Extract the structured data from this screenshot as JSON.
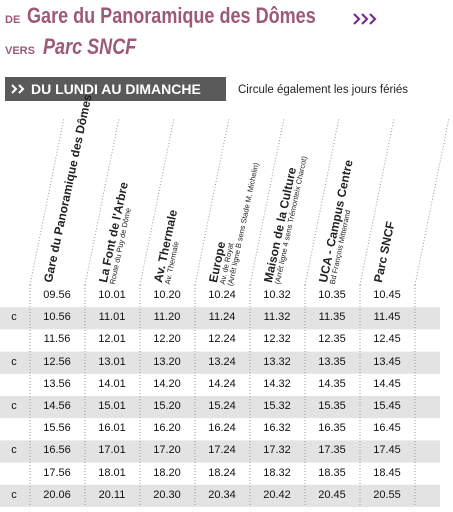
{
  "header": {
    "from_prefix": "DE",
    "from": "Gare du Panoramique des Dômes",
    "to_prefix": "VERS",
    "to": "Parc SNCF"
  },
  "banner": {
    "days": "DU LUNDI AU DIMANCHE",
    "note": "Circule également les jours fériés"
  },
  "table": {
    "columns": [
      {
        "name": "Gare du Panoramique des Dômes",
        "sub": null
      },
      {
        "name": "La Font de l'Arbre",
        "sub": "Route du Puy de Dôme"
      },
      {
        "name": "Av. Thermale",
        "sub": "Av. Thermale"
      },
      {
        "name": "Europe",
        "sub": "Av. de Royat",
        "sub2": "(Arrêt ligne B sens Stade M. Michelin)"
      },
      {
        "name": "Maison de la Culture",
        "sub": "(Arrêt ligne 4 sens Trémonteix Charcot)"
      },
      {
        "name": "UCA - Campus Centre",
        "sub": "Bd François Mitterrand"
      },
      {
        "name": "Parc SNCF",
        "sub": null
      }
    ],
    "rows": [
      {
        "note": null,
        "times": [
          "09.56",
          "10.01",
          "10.20",
          "10.24",
          "10.32",
          "10.35",
          "10.45"
        ]
      },
      {
        "note": "c",
        "times": [
          "10.56",
          "11.01",
          "11.20",
          "11.24",
          "11.32",
          "11.35",
          "11.45"
        ]
      },
      {
        "note": null,
        "times": [
          "11.56",
          "12.01",
          "12.20",
          "12.24",
          "12.32",
          "12.35",
          "12.45"
        ]
      },
      {
        "note": "c",
        "times": [
          "12.56",
          "13.01",
          "13.20",
          "13.24",
          "13.32",
          "13.35",
          "13.45"
        ]
      },
      {
        "note": null,
        "times": [
          "13.56",
          "14.01",
          "14.20",
          "14.24",
          "14.32",
          "14.35",
          "14.45"
        ]
      },
      {
        "note": "c",
        "times": [
          "14.56",
          "15.01",
          "15.20",
          "15.24",
          "15.32",
          "15.35",
          "15.45"
        ]
      },
      {
        "note": null,
        "times": [
          "15.56",
          "16.01",
          "16.20",
          "16.24",
          "16.32",
          "16.35",
          "16.45"
        ]
      },
      {
        "note": "c",
        "times": [
          "16.56",
          "17.01",
          "17.20",
          "17.24",
          "17.32",
          "17.35",
          "17.45"
        ]
      },
      {
        "note": null,
        "times": [
          "17.56",
          "18.01",
          "18.20",
          "18.24",
          "18.32",
          "18.35",
          "18.45"
        ]
      },
      {
        "note": "c",
        "times": [
          "20.06",
          "20.11",
          "20.30",
          "20.34",
          "20.42",
          "20.45",
          "20.55"
        ]
      }
    ]
  }
}
